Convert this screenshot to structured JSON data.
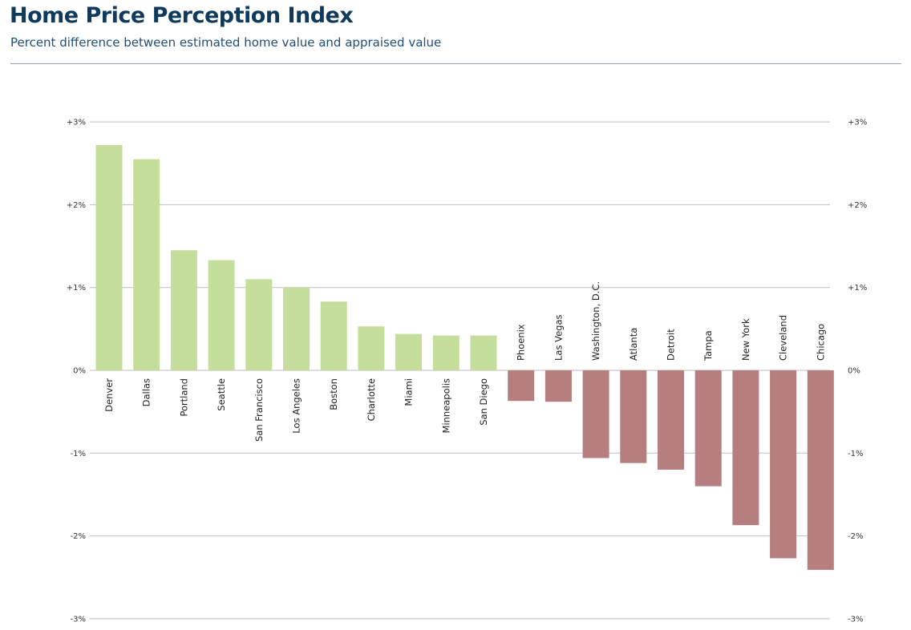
{
  "header": {
    "title": "Home Price Perception Index",
    "subtitle": "Percent difference between estimated home value and appraised value"
  },
  "colors": {
    "positive": "#c5de9c",
    "negative": "#b67e7e",
    "grid": "#bdbdbd",
    "title": "#0f3a5c",
    "subtitle": "#1e4e79"
  },
  "chart_data": {
    "type": "bar",
    "title": "Home Price Perception Index",
    "subtitle": "Percent difference between estimated home value and appraised value",
    "ylim": [
      -3,
      3
    ],
    "yticks": [
      3,
      2,
      1,
      0,
      -1,
      -2,
      -3
    ],
    "ytick_labels": [
      "+3%",
      "+2%",
      "+1%",
      "0%",
      "-1%",
      "-2%",
      "-3%"
    ],
    "grid": true,
    "axis_labels_both_sides": true,
    "categories": [
      "Denver",
      "Dallas",
      "Portland",
      "Seattle",
      "San Francisco",
      "Los Angeles",
      "Boston",
      "Charlotte",
      "Miami",
      "Minneapolis",
      "San Diego",
      "Phoenix",
      "Las Vegas",
      "Washington, D.C.",
      "Atlanta",
      "Detroit",
      "Tampa",
      "New York",
      "Cleveland",
      "Chicago"
    ],
    "values": [
      2.72,
      2.55,
      1.45,
      1.33,
      1.1,
      1.0,
      0.83,
      0.53,
      0.44,
      0.42,
      0.42,
      -0.37,
      -0.38,
      -1.06,
      -1.12,
      -1.2,
      -1.4,
      -1.87,
      -2.27,
      -2.41
    ]
  }
}
